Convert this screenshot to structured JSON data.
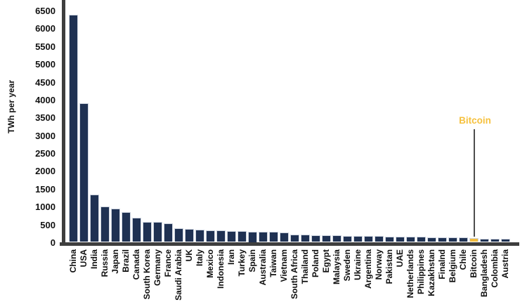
{
  "chart_data": {
    "type": "bar",
    "title": "",
    "xlabel": "",
    "ylabel": "TWh per year",
    "ylim": [
      0,
      6500
    ],
    "ytick_step": 500,
    "yticks": [
      0,
      500,
      1000,
      1500,
      2000,
      2500,
      3000,
      3500,
      4000,
      4500,
      5000,
      5500,
      6000,
      6500
    ],
    "grid": false,
    "legend_position": "none",
    "categories": [
      "China",
      "USA",
      "India",
      "Russia",
      "Japan",
      "Brazil",
      "Canada",
      "South Korea",
      "Germany",
      "France",
      "Saudi Arabia",
      "UK",
      "Italy",
      "Mexico",
      "Indonesia",
      "Iran",
      "Turkey",
      "Spain",
      "Australia",
      "Taiwan",
      "Vietnam",
      "South Africa",
      "Thailand",
      "Poland",
      "Egypt",
      "Malaysia",
      "Sweden",
      "Ukraine",
      "Argentina",
      "Norway",
      "Pakistan",
      "UAE",
      "Netherlands",
      "Philippines",
      "Kazakhstan",
      "Finalnd",
      "Belgium",
      "Chile",
      "Bitcoin",
      "Bangladesh",
      "Colombia",
      "Austria"
    ],
    "values": [
      6400,
      3910,
      1360,
      1025,
      960,
      860,
      710,
      600,
      595,
      550,
      420,
      390,
      370,
      355,
      345,
      335,
      330,
      325,
      318,
      310,
      300,
      240,
      232,
      226,
      218,
      212,
      206,
      200,
      195,
      190,
      186,
      182,
      178,
      172,
      166,
      160,
      155,
      150,
      145,
      128,
      118,
      112
    ],
    "highlight": {
      "category": "Bitcoin",
      "index": 38,
      "annotation_text": "Bitcoin"
    },
    "colors": {
      "bar": "#1f3152",
      "bar_edge": "#ccd3de",
      "highlight_bar": "#f2bb3c",
      "annotation_text": "#f6c13e",
      "axis": "#3e3e3e",
      "text": "#111111"
    }
  }
}
